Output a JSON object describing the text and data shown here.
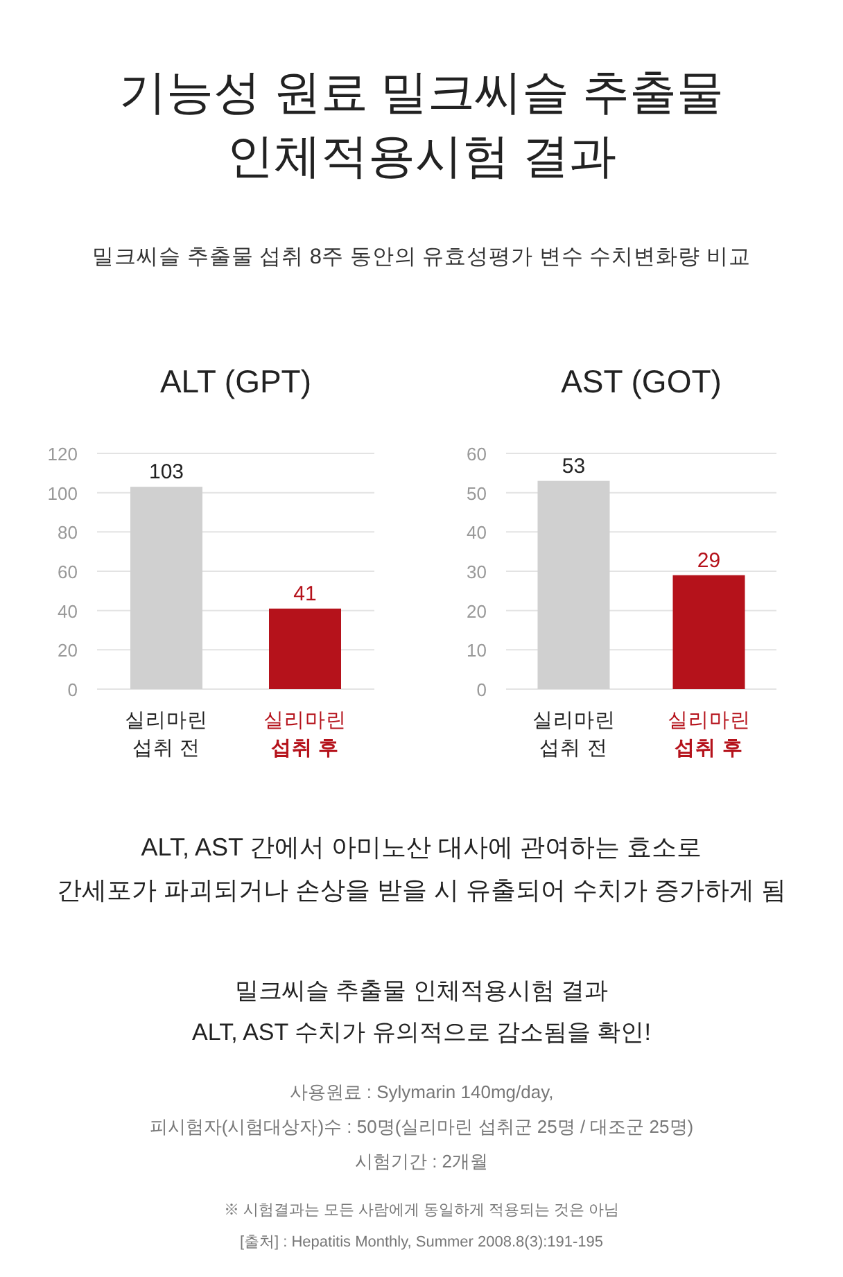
{
  "chart_data": [
    {
      "type": "other",
      "annotations": [
        "기능성 원료 밀크씨슬 추출물",
        "인체적용시험 결과",
        "밀크씨슬 추출물 섭취 8주 동안의 유효성평가 변수 수치변화량 비교"
      ]
    },
    {
      "type": "bar",
      "title": "ALT (GPT)",
      "categories": [
        "실리마린\n섭취 전",
        "실리마린\n섭취 후"
      ],
      "values": [
        103,
        41
      ],
      "colors": [
        "#d0d0d0",
        "#b5121b"
      ],
      "ylim": [
        0,
        120
      ],
      "yticks": [
        0,
        20,
        40,
        60,
        80,
        100,
        120
      ],
      "grid": "y",
      "data_labels": true
    },
    {
      "type": "bar",
      "title": "AST (GOT)",
      "categories": [
        "실리마린\n섭취 전",
        "실리마린\n섭취 후"
      ],
      "values": [
        53,
        29
      ],
      "colors": [
        "#d0d0d0",
        "#b5121b"
      ],
      "ylim": [
        0,
        60
      ],
      "yticks": [
        0,
        10,
        20,
        30,
        40,
        50,
        60
      ],
      "grid": "y",
      "data_labels": true
    },
    {
      "type": "other",
      "annotations": [
        "ALT, AST 간에서 아미노산 대사에 관여하는 효소로",
        "간세포가 파괴되거나 손상을 받을 시 유출되어 수치가 증가하게 됨",
        "밀크씨슬 추출물 인체적용시험 결과",
        "ALT, AST 수치가 유의적으로 감소됨을 확인!",
        "사용원료 : Sylymarin 140mg/day,",
        "피시험자(시험대상자)수 : 50명(실리마린 섭취군 25명 / 대조군 25명)",
        "시험기간 : 2개월",
        "※ 시험결과는 모든 사람에게 동일하게 적용되는 것은 아님",
        "[출처] : Hepatitis Monthly, Summer 2008.8(3):191-195"
      ]
    }
  ]
}
